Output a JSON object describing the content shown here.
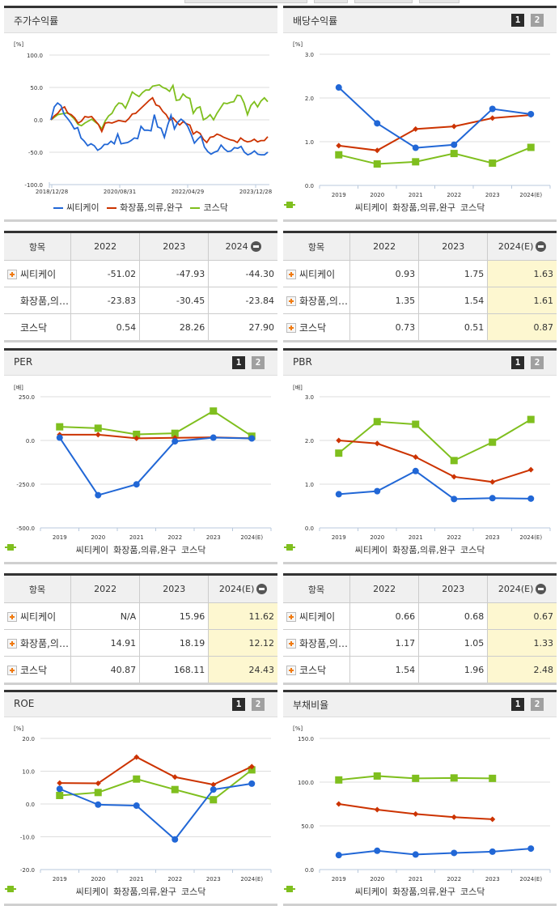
{
  "colors": {
    "citk": "#2167d6",
    "industry": "#cc3300",
    "kosdaq": "#7fbf1e",
    "estimate_bg": "#fdf7d0",
    "header_bg": "#f0f0f0"
  },
  "legend": {
    "citk": "씨티케이",
    "industry": "화장품,의류,완구",
    "kosdaq": "코스닥"
  },
  "page_buttons": {
    "p1": "1",
    "p2": "2"
  },
  "panels": {
    "stock_return": {
      "title": "주가수익률",
      "unit": "[%]"
    },
    "dividend_yield": {
      "title": "배당수익률",
      "unit": "[%]"
    },
    "per": {
      "title": "PER",
      "unit": "[배]"
    },
    "pbr": {
      "title": "PBR",
      "unit": "[배]"
    },
    "roe": {
      "title": "ROE",
      "unit": "[%]"
    },
    "debt_ratio": {
      "title": "부채비율",
      "unit": "[%]"
    }
  },
  "tables": {
    "stock_return": {
      "headers": [
        "항목",
        "2022",
        "2023",
        "2024"
      ],
      "rows": [
        {
          "name": "씨티케이",
          "values": [
            "-51.02",
            "-47.93",
            "-44.30"
          ]
        },
        {
          "name": "화장품,의…",
          "values": [
            "-23.83",
            "-30.45",
            "-23.84"
          ]
        },
        {
          "name": "코스닥",
          "values": [
            "0.54",
            "28.26",
            "27.90"
          ]
        }
      ]
    },
    "dividend_yield": {
      "headers": [
        "항목",
        "2022",
        "2023",
        "2024(E)"
      ],
      "rows": [
        {
          "name": "씨티케이",
          "values": [
            "0.93",
            "1.75",
            "1.63"
          ]
        },
        {
          "name": "화장품,의…",
          "values": [
            "1.35",
            "1.54",
            "1.61"
          ]
        },
        {
          "name": "코스닥",
          "values": [
            "0.73",
            "0.51",
            "0.87"
          ]
        }
      ]
    },
    "per": {
      "headers": [
        "항목",
        "2022",
        "2023",
        "2024(E)"
      ],
      "rows": [
        {
          "name": "씨티케이",
          "values": [
            "N/A",
            "15.96",
            "11.62"
          ]
        },
        {
          "name": "화장품,의…",
          "values": [
            "14.91",
            "18.19",
            "12.12"
          ]
        },
        {
          "name": "코스닥",
          "values": [
            "40.87",
            "168.11",
            "24.43"
          ]
        }
      ]
    },
    "pbr": {
      "headers": [
        "항목",
        "2022",
        "2023",
        "2024(E)"
      ],
      "rows": [
        {
          "name": "씨티케이",
          "values": [
            "0.66",
            "0.68",
            "0.67"
          ]
        },
        {
          "name": "화장품,의…",
          "values": [
            "1.17",
            "1.05",
            "1.33"
          ]
        },
        {
          "name": "코스닥",
          "values": [
            "1.54",
            "1.96",
            "2.48"
          ]
        }
      ]
    }
  },
  "chart_data": [
    {
      "id": "stock_return",
      "type": "line",
      "title": "주가수익률",
      "ylabel": "[%]",
      "ylim": [
        -100,
        100
      ],
      "yticks": [
        "100.0",
        "50.0",
        "0.0",
        "-50.0",
        "-100.0"
      ],
      "xticks": [
        "2018/12/28",
        "2020/08/31",
        "2022/04/29",
        "2023/12/28"
      ],
      "grid": true,
      "legend_position": "bottom",
      "series": [
        {
          "name": "씨티케이",
          "values": [
            0,
            20,
            26,
            22,
            8,
            2,
            -5,
            -14,
            -12,
            -28,
            -33,
            -40,
            -37,
            -40,
            -47,
            -44,
            -38,
            -38,
            -33,
            -37,
            -22,
            -37,
            -36,
            -35,
            -32,
            -28,
            -29,
            -10,
            -16,
            -16,
            -17,
            8,
            -11,
            -13,
            -27,
            -8,
            7,
            -14,
            -4,
            1,
            -3,
            -10,
            -22,
            -36,
            -30,
            -25,
            -42,
            -49,
            -53,
            -50,
            -48,
            -39,
            -45,
            -49,
            -48,
            -43,
            -44,
            -41,
            -50,
            -54,
            -52,
            -48,
            -53,
            -54,
            -54,
            -50
          ]
        },
        {
          "name": "화장품,의류,완구",
          "values": [
            0,
            6,
            10,
            17,
            20,
            10,
            8,
            3,
            -5,
            -2,
            5,
            4,
            5,
            -1,
            -7,
            -18,
            -5,
            -4,
            -5,
            -3,
            -1,
            -2,
            -3,
            2,
            9,
            10,
            15,
            20,
            25,
            30,
            34,
            23,
            21,
            13,
            8,
            -1,
            3,
            -3,
            -8,
            -3,
            -6,
            -8,
            -22,
            -18,
            -21,
            -30,
            -35,
            -27,
            -26,
            -22,
            -24,
            -27,
            -29,
            -31,
            -32,
            -35,
            -28,
            -32,
            -34,
            -33,
            -30,
            -34,
            -32,
            -32,
            -26
          ]
        },
        {
          "name": "코스닥",
          "values": [
            0,
            4,
            8,
            9,
            10,
            11,
            6,
            1,
            -7,
            -9,
            -5,
            -2,
            1,
            -3,
            -7,
            -14,
            -2,
            6,
            10,
            20,
            26,
            25,
            18,
            30,
            43,
            39,
            36,
            42,
            46,
            46,
            52,
            53,
            54,
            50,
            48,
            44,
            53,
            30,
            31,
            40,
            35,
            33,
            10,
            18,
            20,
            0,
            3,
            8,
            0,
            10,
            18,
            26,
            25,
            27,
            28,
            38,
            37,
            26,
            8,
            22,
            28,
            20,
            29,
            34,
            28
          ]
        }
      ]
    },
    {
      "id": "dividend_yield",
      "type": "line",
      "title": "배당수익률",
      "ylabel": "[%]",
      "ylim": [
        0,
        3
      ],
      "yticks": [
        "3.0",
        "2.0",
        "1.0",
        "0.0"
      ],
      "categories": [
        "2019",
        "2020",
        "2021",
        "2022",
        "2023",
        "2024(E)"
      ],
      "grid": true,
      "legend_position": "bottom",
      "series": [
        {
          "name": "씨티케이",
          "values": [
            2.24,
            1.42,
            0.86,
            0.93,
            1.75,
            1.63
          ]
        },
        {
          "name": "화장품,의류,완구",
          "values": [
            0.91,
            0.8,
            1.29,
            1.35,
            1.54,
            1.61
          ]
        },
        {
          "name": "코스닥",
          "values": [
            0.7,
            0.49,
            0.54,
            0.73,
            0.51,
            0.87
          ]
        }
      ]
    },
    {
      "id": "per",
      "type": "line",
      "title": "PER",
      "ylabel": "[배]",
      "ylim": [
        -500,
        250
      ],
      "yticks": [
        "250.0",
        "0.0",
        "-250.0",
        "-500.0"
      ],
      "categories": [
        "2019",
        "2020",
        "2021",
        "2022",
        "2023",
        "2024(E)"
      ],
      "grid": true,
      "legend_position": "bottom",
      "series": [
        {
          "name": "씨티케이",
          "values": [
            16,
            -313,
            -251,
            -5,
            15.96,
            11.62
          ]
        },
        {
          "name": "화장품,의류,완구",
          "values": [
            33,
            33,
            12,
            14.91,
            18.19,
            12.12
          ]
        },
        {
          "name": "코스닥",
          "values": [
            78,
            70,
            35,
            40.87,
            168.11,
            24.43
          ]
        }
      ]
    },
    {
      "id": "pbr",
      "type": "line",
      "title": "PBR",
      "ylabel": "[배]",
      "ylim": [
        0,
        3
      ],
      "yticks": [
        "3.0",
        "2.0",
        "1.0",
        "0.0"
      ],
      "categories": [
        "2019",
        "2020",
        "2021",
        "2022",
        "2023",
        "2024(E)"
      ],
      "grid": true,
      "legend_position": "bottom",
      "series": [
        {
          "name": "씨티케이",
          "values": [
            0.77,
            0.84,
            1.3,
            0.66,
            0.68,
            0.67
          ]
        },
        {
          "name": "화장품,의류,완구",
          "values": [
            2.0,
            1.93,
            1.62,
            1.17,
            1.05,
            1.33
          ]
        },
        {
          "name": "코스닥",
          "values": [
            1.71,
            2.43,
            2.37,
            1.54,
            1.96,
            2.48
          ]
        }
      ]
    },
    {
      "id": "roe",
      "type": "line",
      "title": "ROE",
      "ylabel": "[%]",
      "ylim": [
        -20,
        20
      ],
      "yticks": [
        "20.0",
        "10.0",
        "0.0",
        "-10.0",
        "-20.0"
      ],
      "categories": [
        "2019",
        "2020",
        "2021",
        "2022",
        "2023",
        "2024(E)"
      ],
      "grid": true,
      "legend_position": "bottom",
      "series": [
        {
          "name": "씨티케이",
          "values": [
            4.6,
            -0.2,
            -0.5,
            -10.8,
            4.4,
            6.2
          ]
        },
        {
          "name": "화장품,의류,완구",
          "values": [
            6.4,
            6.3,
            14.3,
            8.2,
            5.9,
            11.4
          ]
        },
        {
          "name": "코스닥",
          "values": [
            2.6,
            3.5,
            7.6,
            4.4,
            1.3,
            10.4
          ]
        }
      ]
    },
    {
      "id": "debt_ratio",
      "type": "line",
      "title": "부채비율",
      "ylabel": "[%]",
      "ylim": [
        0,
        150
      ],
      "yticks": [
        "150.0",
        "100.0",
        "50.0",
        "0.0"
      ],
      "categories": [
        "2019",
        "2020",
        "2021",
        "2022",
        "2023",
        "2024(E)"
      ],
      "grid": true,
      "legend_position": "bottom",
      "series": [
        {
          "name": "씨티케이",
          "values": [
            16.5,
            21.5,
            17.2,
            19,
            20.5,
            24
          ]
        },
        {
          "name": "화장품,의류,완구",
          "values": [
            75,
            68.5,
            63.5,
            60,
            57.5,
            null
          ]
        },
        {
          "name": "코스닥",
          "values": [
            102.5,
            107,
            104.3,
            104.8,
            104.3,
            null
          ]
        }
      ]
    }
  ]
}
